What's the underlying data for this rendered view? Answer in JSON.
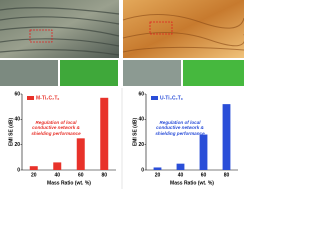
{
  "chart_data": [
    {
      "type": "bar",
      "xlabel": "Mass Ratio (wt. %)",
      "ylabel": "EMI SE (dB)",
      "categories": [
        "20",
        "40",
        "60",
        "80"
      ],
      "series": [
        {
          "name": "M-Ti₃C₂Tₓ",
          "color": "#e8322a",
          "values": [
            3,
            6,
            25,
            57
          ]
        }
      ],
      "ylim": [
        0,
        60
      ],
      "yticks": [
        0,
        20,
        40,
        60
      ],
      "annotation": "Regulation of local conductive network & shielding performance"
    },
    {
      "type": "bar",
      "xlabel": "Mass Ratio (wt. %)",
      "ylabel": "EMI SE (dB)",
      "categories": [
        "20",
        "40",
        "60",
        "80"
      ],
      "series": [
        {
          "name": "U-Ti₃C₂Tₓ",
          "color": "#2a4ed8",
          "values": [
            2,
            5,
            28,
            52
          ]
        }
      ],
      "ylim": [
        0,
        60
      ],
      "yticks": [
        0,
        20,
        40,
        60
      ],
      "annotation": "Regulation of local conductive network & shielding performance"
    }
  ]
}
